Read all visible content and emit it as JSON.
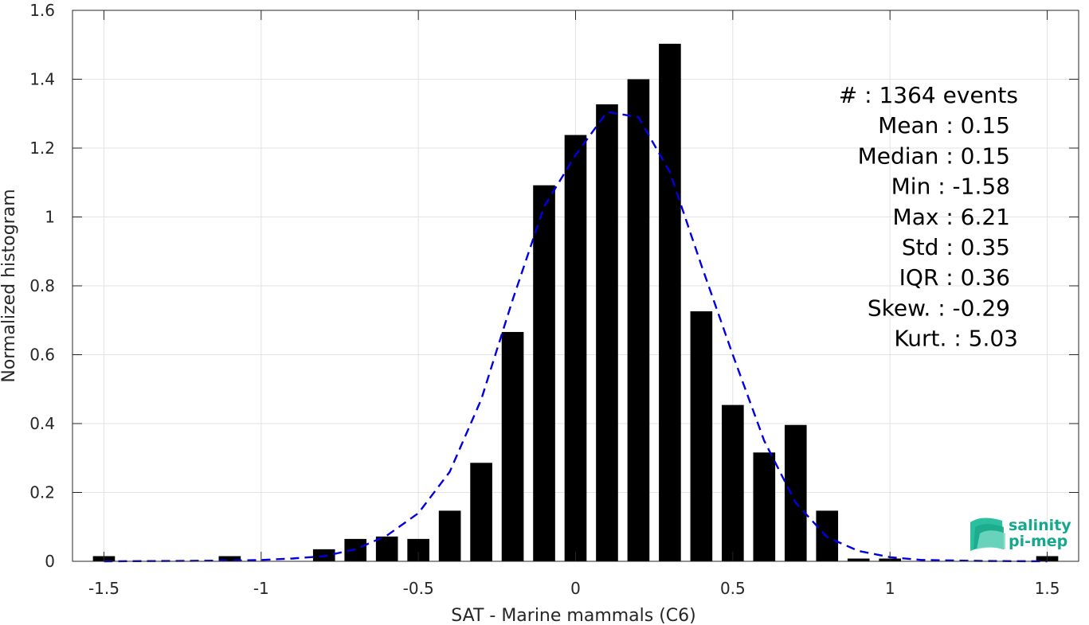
{
  "chart_data": {
    "type": "bar",
    "xlabel": "SAT - Marine mammals (C6)",
    "ylabel": "Normalized histogram",
    "xlim": [
      -1.6,
      1.6
    ],
    "ylim": [
      0,
      1.6
    ],
    "xticks": [
      -1.5,
      -1,
      -0.5,
      0,
      0.5,
      1,
      1.5
    ],
    "xtick_labels": [
      "-1.5",
      "-1",
      "-0.5",
      "0",
      "0.5",
      "1",
      "1.5"
    ],
    "yticks": [
      0,
      0.2,
      0.4,
      0.6,
      0.8,
      1,
      1.2,
      1.4,
      1.6
    ],
    "ytick_labels": [
      "0",
      "0.2",
      "0.4",
      "0.6",
      "0.8",
      "1",
      "1.2",
      "1.4",
      "1.6"
    ],
    "grid": true,
    "bar_color": "#000000",
    "bar_width": 0.07,
    "bars": [
      {
        "x": -1.5,
        "y": 0.015
      },
      {
        "x": -1.1,
        "y": 0.015
      },
      {
        "x": -0.8,
        "y": 0.035
      },
      {
        "x": -0.7,
        "y": 0.065
      },
      {
        "x": -0.6,
        "y": 0.072
      },
      {
        "x": -0.5,
        "y": 0.065
      },
      {
        "x": -0.4,
        "y": 0.147
      },
      {
        "x": -0.3,
        "y": 0.286
      },
      {
        "x": -0.2,
        "y": 0.666
      },
      {
        "x": -0.1,
        "y": 1.092
      },
      {
        "x": 0.0,
        "y": 1.238
      },
      {
        "x": 0.1,
        "y": 1.327
      },
      {
        "x": 0.2,
        "y": 1.4
      },
      {
        "x": 0.3,
        "y": 1.503
      },
      {
        "x": 0.4,
        "y": 0.726
      },
      {
        "x": 0.5,
        "y": 0.454
      },
      {
        "x": 0.6,
        "y": 0.316
      },
      {
        "x": 0.7,
        "y": 0.396
      },
      {
        "x": 0.8,
        "y": 0.147
      },
      {
        "x": 0.9,
        "y": 0.008
      },
      {
        "x": 1.0,
        "y": 0.008
      },
      {
        "x": 1.5,
        "y": 0.015
      }
    ],
    "fit_curve": {
      "color": "#0000e0",
      "style": "dashed",
      "points": [
        [
          -1.5,
          0.0
        ],
        [
          -1.3,
          0.001
        ],
        [
          -1.1,
          0.002
        ],
        [
          -1.0,
          0.004
        ],
        [
          -0.9,
          0.008
        ],
        [
          -0.8,
          0.015
        ],
        [
          -0.7,
          0.035
        ],
        [
          -0.6,
          0.075
        ],
        [
          -0.5,
          0.14
        ],
        [
          -0.4,
          0.26
        ],
        [
          -0.3,
          0.47
        ],
        [
          -0.2,
          0.76
        ],
        [
          -0.1,
          1.03
        ],
        [
          0.0,
          1.18
        ],
        [
          0.1,
          1.305
        ],
        [
          0.2,
          1.29
        ],
        [
          0.3,
          1.13
        ],
        [
          0.4,
          0.86
        ],
        [
          0.5,
          0.6
        ],
        [
          0.6,
          0.35
        ],
        [
          0.7,
          0.17
        ],
        [
          0.8,
          0.07
        ],
        [
          0.9,
          0.03
        ],
        [
          1.0,
          0.012
        ],
        [
          1.1,
          0.004
        ],
        [
          1.3,
          0.001
        ],
        [
          1.5,
          0.0
        ]
      ]
    },
    "stats": [
      "#  : 1364 events",
      "Mean : 0.15",
      "Median : 0.15",
      "Min : -1.58",
      "Max : 6.21",
      "Std : 0.35",
      "IQR : 0.36",
      "Skew. : -0.29",
      "Kurt. : 5.03"
    ]
  },
  "logo": {
    "line1": "salinity",
    "line2": "pi-mep",
    "color": "#16a88f"
  }
}
